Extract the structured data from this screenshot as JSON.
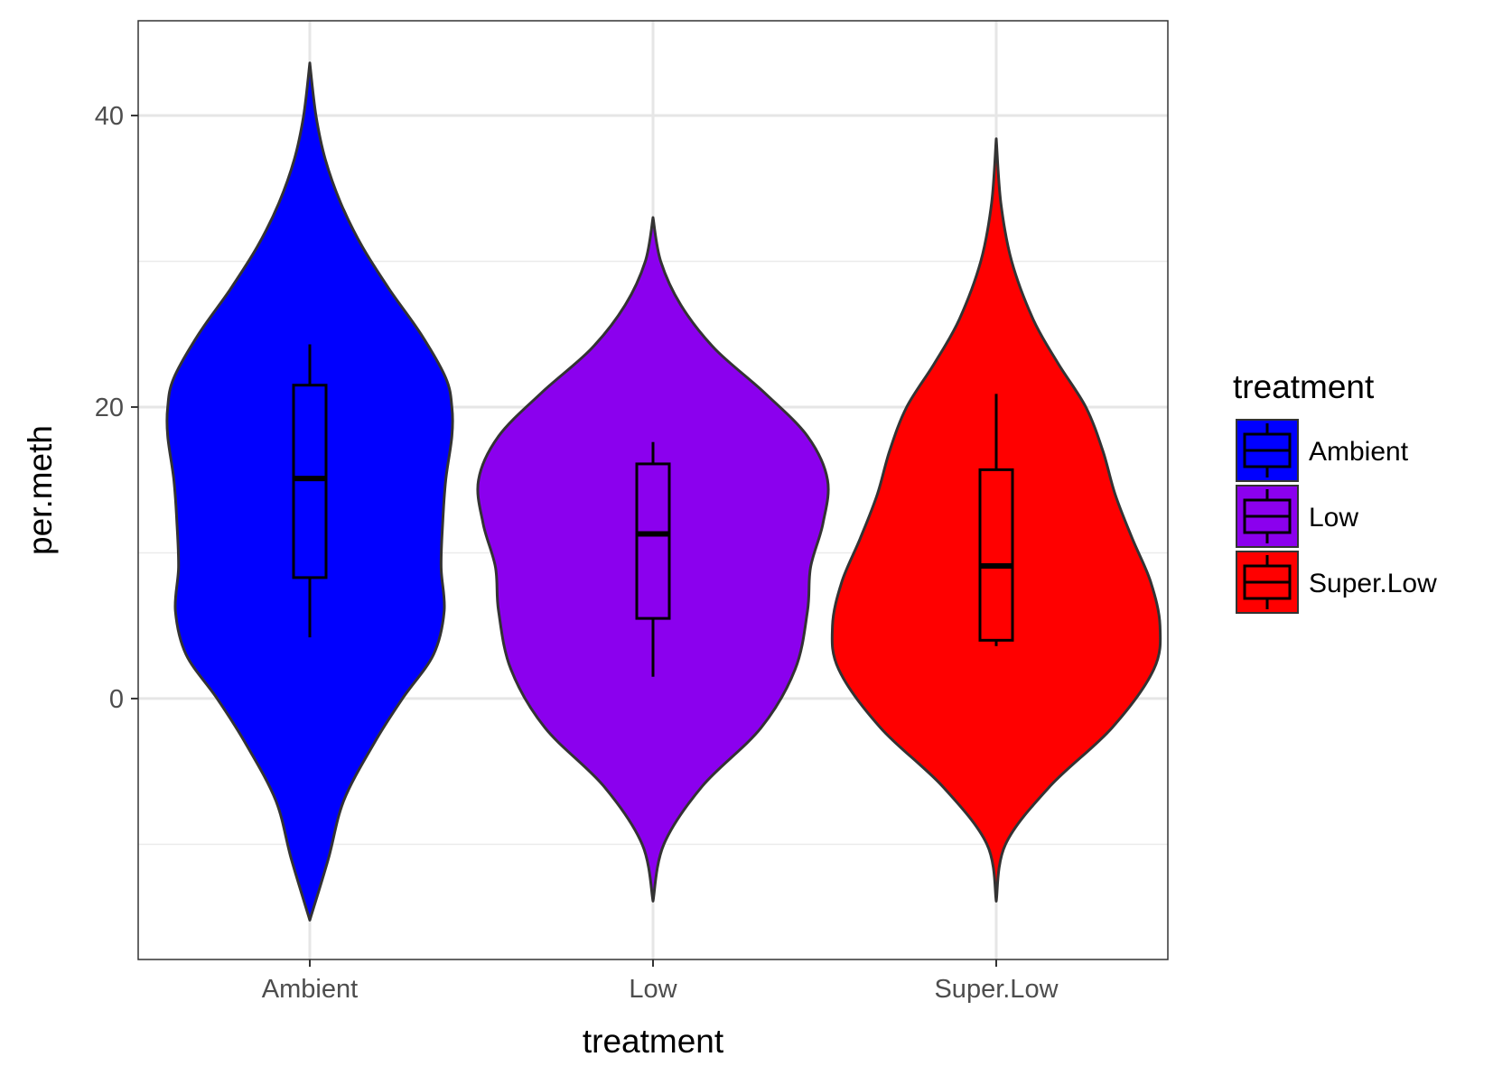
{
  "chart_data": {
    "type": "violin",
    "title": "",
    "xlabel": "treatment",
    "ylabel": "per.meth",
    "ylim": [
      -17.9,
      46.5
    ],
    "yticks": [
      0,
      20,
      40
    ],
    "yticks_minor": [
      -10,
      10,
      30
    ],
    "grid": true,
    "categories": [
      "Ambient",
      "Low",
      "Super.Low"
    ],
    "series": [
      {
        "name": "Ambient",
        "color": "#0000FF",
        "violin": {
          "ymin": -15.2,
          "ymax": 43.6,
          "profile": [
            [
              -15.2,
              0.0
            ],
            [
              -11.0,
              0.12
            ],
            [
              -7.0,
              0.22
            ],
            [
              -3.0,
              0.42
            ],
            [
              0,
              0.6
            ],
            [
              3.0,
              0.8
            ],
            [
              6.0,
              0.87
            ],
            [
              9.0,
              0.85
            ],
            [
              12.0,
              0.86
            ],
            [
              15.0,
              0.88
            ],
            [
              18.0,
              0.92
            ],
            [
              20.0,
              0.92
            ],
            [
              22.0,
              0.88
            ],
            [
              25.0,
              0.72
            ],
            [
              28.0,
              0.52
            ],
            [
              31.0,
              0.34
            ],
            [
              34.0,
              0.2
            ],
            [
              37.0,
              0.1
            ],
            [
              40.0,
              0.04
            ],
            [
              43.6,
              0.0
            ]
          ]
        },
        "box": {
          "lower_whisker": 4.2,
          "q1": 8.3,
          "median": 15.1,
          "q3": 21.5,
          "upper_whisker": 24.3
        }
      },
      {
        "name": "Low",
        "color": "#8B00EE",
        "violin": {
          "ymin": -13.9,
          "ymax": 33.0,
          "profile": [
            [
              -13.9,
              0.0
            ],
            [
              -10.0,
              0.07
            ],
            [
              -6.0,
              0.32
            ],
            [
              -2.0,
              0.7
            ],
            [
              2.0,
              0.92
            ],
            [
              6.0,
              1.0
            ],
            [
              9.0,
              1.02
            ],
            [
              12.0,
              1.1
            ],
            [
              15.0,
              1.13
            ],
            [
              18.0,
              1.0
            ],
            [
              21.0,
              0.72
            ],
            [
              24.0,
              0.4
            ],
            [
              27.0,
              0.18
            ],
            [
              30.0,
              0.05
            ],
            [
              33.0,
              0.0
            ]
          ]
        },
        "box": {
          "lower_whisker": 1.5,
          "q1": 5.5,
          "median": 11.3,
          "q3": 16.1,
          "upper_whisker": 17.6
        }
      },
      {
        "name": "Super.Low",
        "color": "#FF0000",
        "violin": {
          "ymin": -13.9,
          "ymax": 38.4,
          "profile": [
            [
              -13.9,
              0.0
            ],
            [
              -10.0,
              0.06
            ],
            [
              -6.0,
              0.35
            ],
            [
              -2.0,
              0.75
            ],
            [
              2.0,
              1.02
            ],
            [
              5.0,
              1.06
            ],
            [
              8.0,
              1.0
            ],
            [
              11.0,
              0.88
            ],
            [
              14.0,
              0.77
            ],
            [
              17.0,
              0.69
            ],
            [
              20.0,
              0.58
            ],
            [
              23.0,
              0.4
            ],
            [
              26.0,
              0.24
            ],
            [
              30.0,
              0.1
            ],
            [
              34.0,
              0.03
            ],
            [
              38.4,
              0.0
            ]
          ]
        },
        "box": {
          "lower_whisker": 3.6,
          "q1": 4.0,
          "median": 9.1,
          "q3": 15.7,
          "upper_whisker": 20.9
        }
      }
    ],
    "legend": {
      "title": "treatment",
      "placement": "right",
      "items": [
        "Ambient",
        "Low",
        "Super.Low"
      ]
    }
  }
}
